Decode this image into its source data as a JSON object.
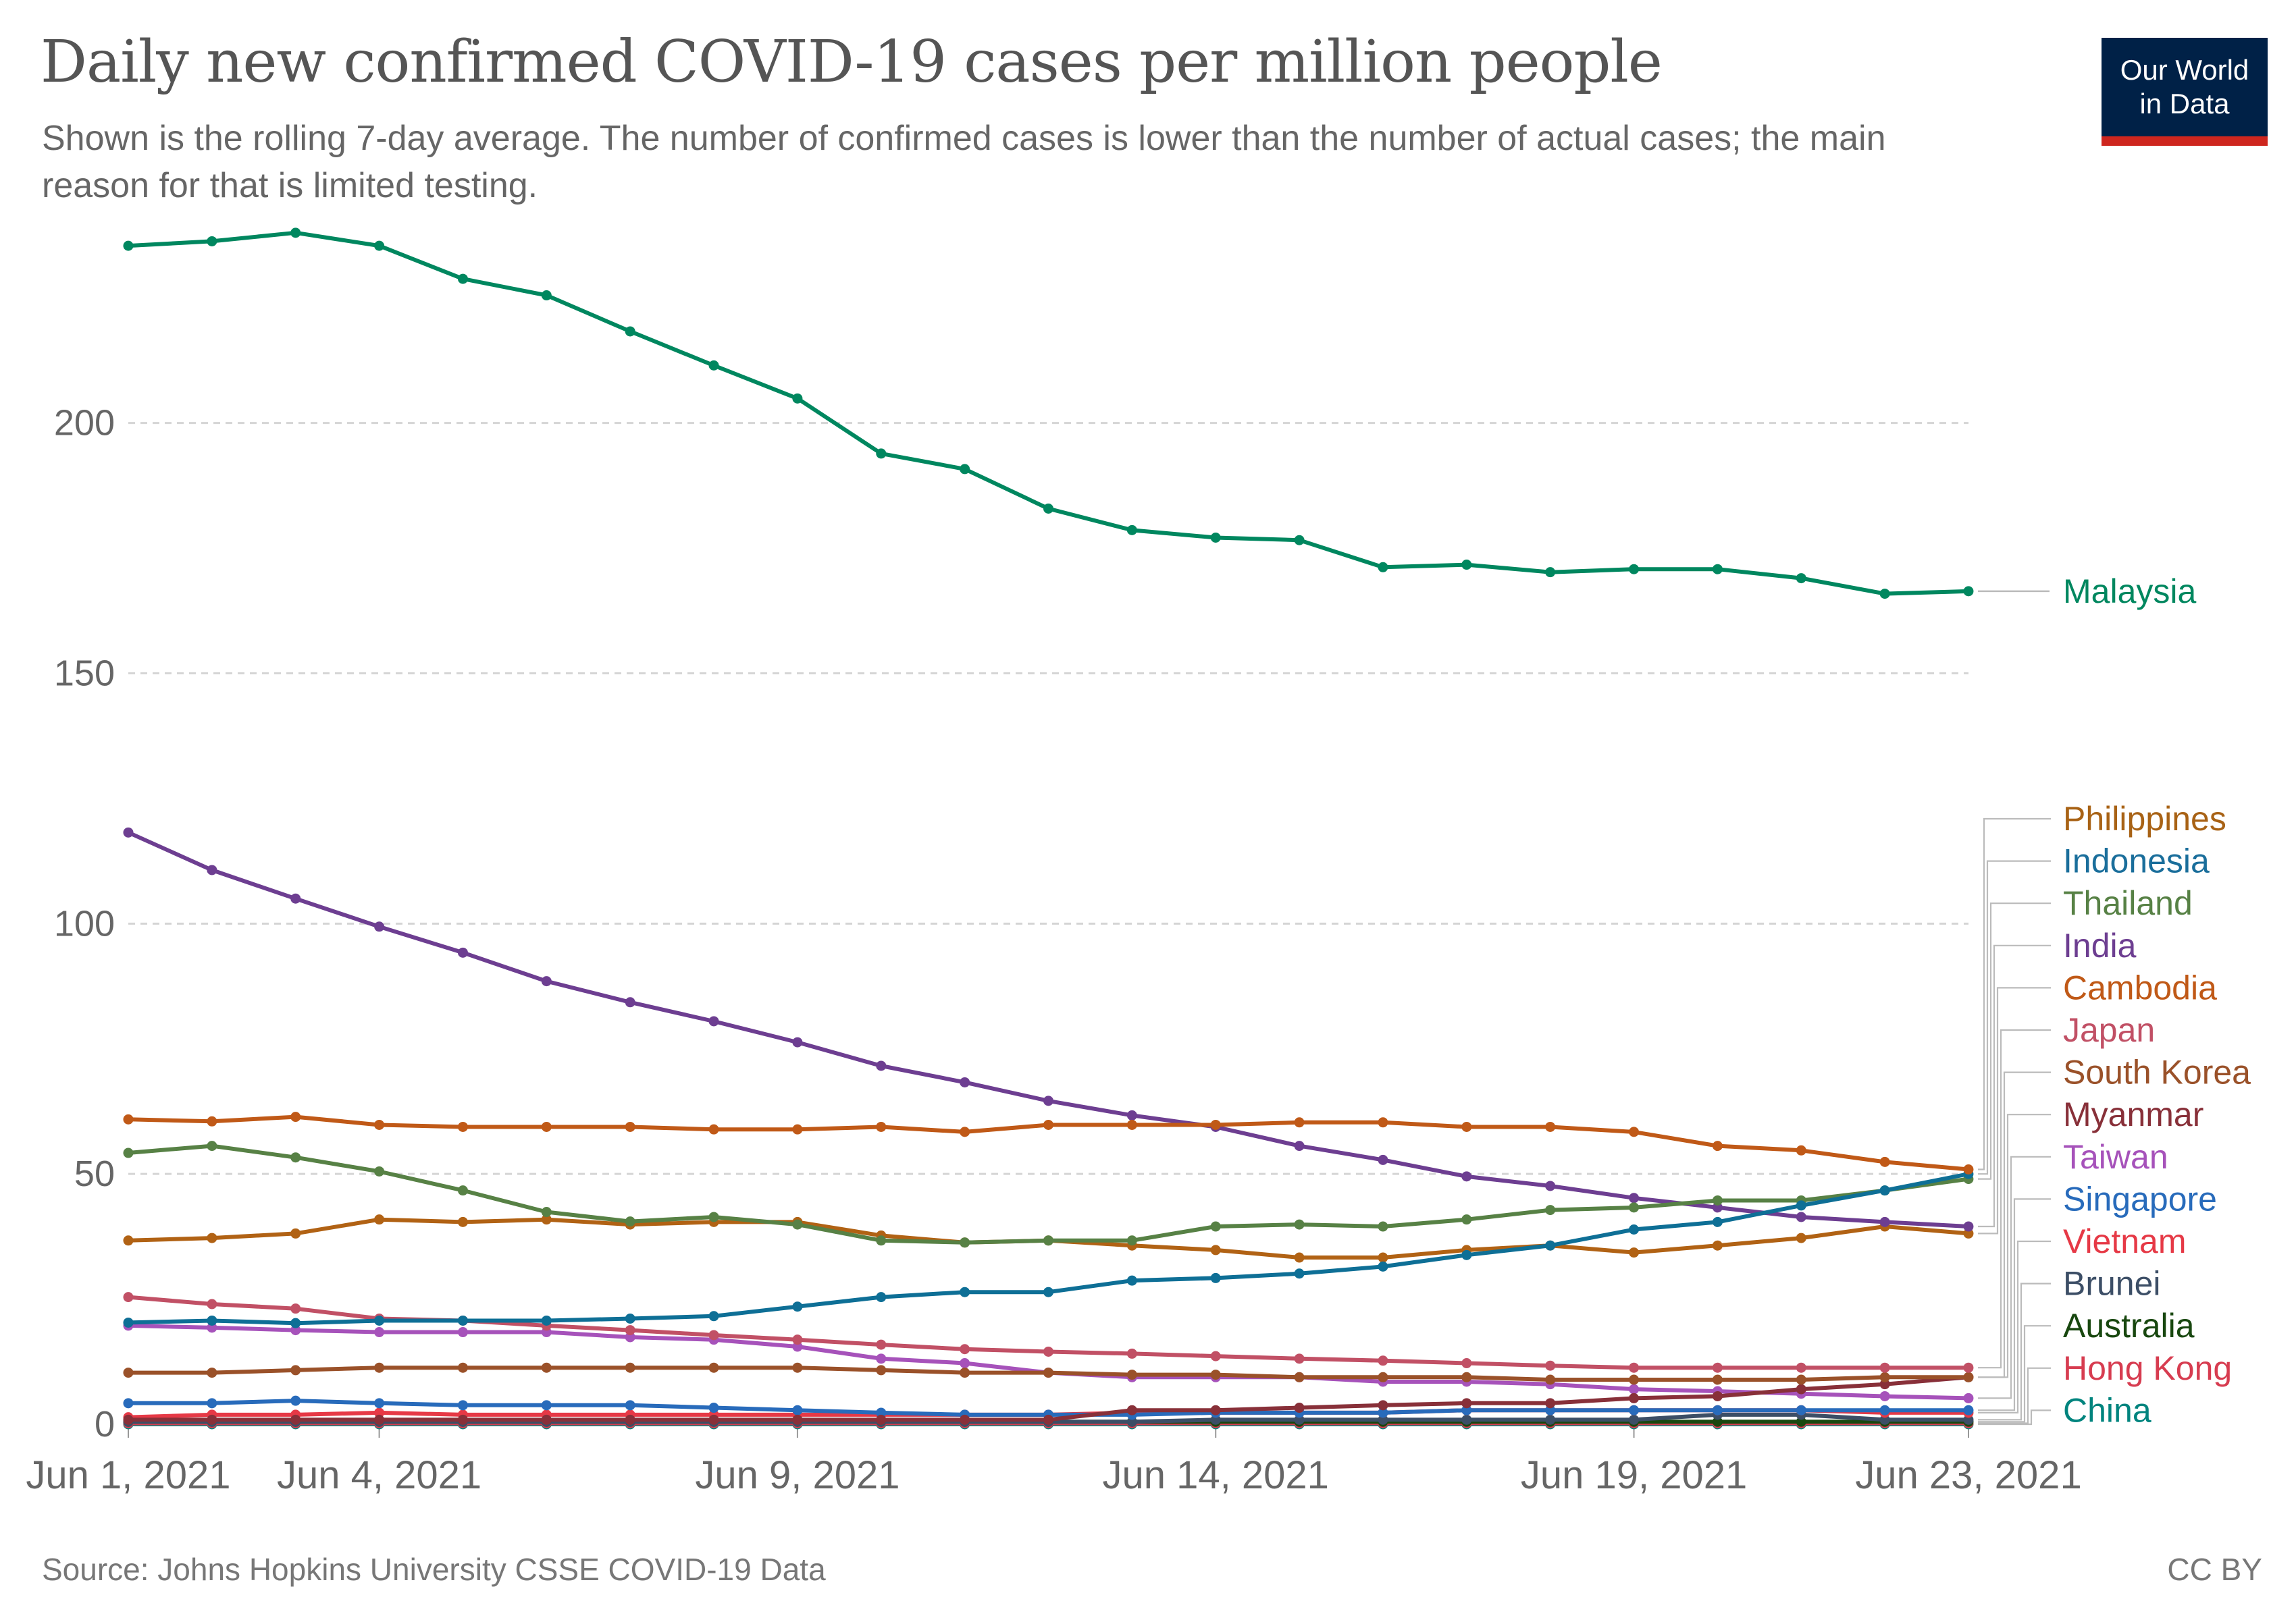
{
  "title": "Daily new confirmed COVID-19 cases per million people",
  "subtitle": "Shown is the rolling 7-day average. The number of confirmed cases is lower than the number of actual cases; the main reason for that is limited testing.",
  "logo": {
    "line1": "Our World",
    "line2": "in Data"
  },
  "source": "Source: Johns Hopkins University CSSE COVID-19 Data",
  "license": "CC BY",
  "chart_data": {
    "type": "line",
    "title": "Daily new confirmed COVID-19 cases per million people",
    "subtitle": "Shown is the rolling 7-day average. The number of confirmed cases is lower than the number of actual cases; the main reason for that is limited testing.",
    "xlabel": "",
    "ylabel": "",
    "x": [
      "2021-06-01",
      "2021-06-02",
      "2021-06-03",
      "2021-06-04",
      "2021-06-05",
      "2021-06-06",
      "2021-06-07",
      "2021-06-08",
      "2021-06-09",
      "2021-06-10",
      "2021-06-11",
      "2021-06-12",
      "2021-06-13",
      "2021-06-14",
      "2021-06-15",
      "2021-06-16",
      "2021-06-17",
      "2021-06-18",
      "2021-06-19",
      "2021-06-20",
      "2021-06-21",
      "2021-06-22",
      "2021-06-23"
    ],
    "x_ticks": [
      {
        "x": "2021-06-01",
        "label": "Jun 1, 2021"
      },
      {
        "x": "2021-06-04",
        "label": "Jun 4, 2021"
      },
      {
        "x": "2021-06-09",
        "label": "Jun 9, 2021"
      },
      {
        "x": "2021-06-14",
        "label": "Jun 14, 2021"
      },
      {
        "x": "2021-06-19",
        "label": "Jun 19, 2021"
      },
      {
        "x": "2021-06-23",
        "label": "Jun 23, 2021"
      }
    ],
    "y_ticks": [
      0,
      50,
      100,
      150,
      200
    ],
    "ylim": [
      0,
      240
    ],
    "grid": "horizontal dashed",
    "legend": "right, labels at line ends",
    "series": [
      {
        "name": "Malaysia",
        "color": "#00875f",
        "values": [
          235.4,
          236.3,
          238.0,
          235.4,
          228.8,
          225.5,
          218.3,
          211.5,
          204.9,
          193.9,
          190.8,
          182.9,
          178.6,
          177.1,
          176.6,
          171.2,
          171.7,
          170.2,
          170.8,
          170.8,
          169.0,
          165.9,
          166.4
        ]
      },
      {
        "name": "Philippines",
        "color": "#c05917",
        "values": [
          60.9,
          60.5,
          61.4,
          59.8,
          59.4,
          59.4,
          59.4,
          58.9,
          58.9,
          59.4,
          58.4,
          59.8,
          59.8,
          59.8,
          60.3,
          60.3,
          59.4,
          59.4,
          58.4,
          55.6,
          54.7,
          52.4,
          50.9
        ]
      },
      {
        "name": "Indonesia",
        "color": "#0e6f96",
        "values": [
          20.3,
          20.7,
          20.2,
          20.7,
          20.7,
          20.7,
          21.1,
          21.6,
          23.5,
          25.4,
          26.4,
          26.4,
          28.7,
          29.2,
          30.1,
          31.5,
          33.8,
          35.7,
          38.9,
          40.4,
          43.7,
          46.7,
          50.0
        ]
      },
      {
        "name": "Thailand",
        "color": "#578145",
        "values": [
          54.2,
          55.6,
          53.3,
          50.5,
          46.7,
          42.4,
          40.5,
          41.4,
          39.9,
          36.7,
          36.3,
          36.7,
          36.7,
          39.5,
          39.9,
          39.5,
          40.9,
          42.8,
          43.3,
          44.7,
          44.7,
          46.7,
          49.0
        ]
      },
      {
        "name": "India",
        "color": "#6d3e91",
        "values": [
          118.2,
          110.7,
          105.0,
          99.4,
          94.2,
          88.5,
          84.3,
          80.5,
          76.3,
          71.6,
          68.3,
          64.6,
          61.7,
          59.4,
          55.6,
          52.8,
          49.5,
          47.6,
          45.2,
          43.3,
          41.4,
          40.4,
          39.5
        ]
      },
      {
        "name": "Cambodia",
        "color": "#b16214",
        "values": [
          36.7,
          37.2,
          38.1,
          40.9,
          40.4,
          40.9,
          39.9,
          40.4,
          40.4,
          37.7,
          36.3,
          36.7,
          35.7,
          34.8,
          33.3,
          33.3,
          34.8,
          35.7,
          34.3,
          35.7,
          37.2,
          39.5,
          38.1
        ]
      },
      {
        "name": "Japan",
        "color": "#c15065",
        "values": [
          25.4,
          24.0,
          23.1,
          21.1,
          20.7,
          19.7,
          18.8,
          17.8,
          16.9,
          15.9,
          15.0,
          14.5,
          14.1,
          13.6,
          13.1,
          12.7,
          12.2,
          11.7,
          11.3,
          11.3,
          11.3,
          11.3,
          11.3
        ]
      },
      {
        "name": "South Korea",
        "color": "#9a5129",
        "values": [
          10.3,
          10.3,
          10.8,
          11.3,
          11.3,
          11.3,
          11.3,
          11.3,
          11.3,
          10.8,
          10.3,
          10.3,
          9.9,
          9.9,
          9.4,
          9.4,
          9.4,
          8.9,
          8.9,
          8.9,
          8.9,
          9.4,
          9.4
        ]
      },
      {
        "name": "Myanmar",
        "color": "#883039",
        "values": [
          0.9,
          0.9,
          0.9,
          0.9,
          0.9,
          0.9,
          0.9,
          0.9,
          0.9,
          0.9,
          0.9,
          0.9,
          2.8,
          2.8,
          3.3,
          3.8,
          4.2,
          4.2,
          5.2,
          5.6,
          7.0,
          8.0,
          9.4
        ]
      },
      {
        "name": "Taiwan",
        "color": "#a652ba",
        "values": [
          19.7,
          19.3,
          18.8,
          18.4,
          18.4,
          18.4,
          17.4,
          16.9,
          15.5,
          13.1,
          12.2,
          10.3,
          9.4,
          9.4,
          9.4,
          8.5,
          8.5,
          8.0,
          7.0,
          6.6,
          6.1,
          5.6,
          5.2
        ]
      },
      {
        "name": "Singapore",
        "color": "#286bbb",
        "values": [
          4.2,
          4.2,
          4.7,
          4.2,
          3.8,
          3.8,
          3.8,
          3.3,
          2.8,
          2.3,
          1.9,
          1.9,
          1.9,
          2.3,
          2.3,
          2.3,
          2.8,
          2.8,
          2.8,
          2.8,
          2.8,
          2.8,
          2.8
        ]
      },
      {
        "name": "Vietnam",
        "color": "#e63946",
        "values": [
          1.4,
          1.9,
          1.9,
          2.3,
          1.9,
          1.9,
          1.9,
          1.9,
          1.9,
          1.9,
          1.9,
          1.9,
          2.3,
          2.3,
          2.3,
          2.3,
          2.8,
          2.8,
          2.8,
          2.8,
          2.8,
          2.3,
          2.3
        ]
      },
      {
        "name": "Brunei",
        "color": "#3c4e66",
        "values": [
          0.5,
          0.5,
          0.5,
          0.5,
          0.5,
          0.5,
          0.5,
          0.5,
          0.5,
          0.5,
          0.5,
          0.5,
          0.5,
          0.9,
          0.9,
          0.9,
          0.9,
          0.9,
          0.9,
          1.9,
          1.9,
          0.9,
          0.9
        ]
      },
      {
        "name": "Australia",
        "color": "#18470f",
        "values": [
          0.5,
          0.5,
          0.5,
          0.5,
          0.5,
          0.5,
          0.5,
          0.5,
          0.5,
          0.5,
          0.5,
          0.5,
          0.5,
          0.5,
          0.5,
          0.5,
          0.5,
          0.5,
          0.5,
          0.5,
          0.5,
          0.5,
          0.5
        ]
      },
      {
        "name": "Hong Kong",
        "color": "#d73c50",
        "values": [
          0.2,
          0.2,
          0.2,
          0.2,
          0.2,
          0.2,
          0.2,
          0.2,
          0.2,
          0.2,
          0.2,
          0.2,
          0.2,
          0.2,
          0.2,
          0.2,
          0.2,
          0.2,
          0.2,
          0.2,
          0.2,
          0.2,
          0.2
        ]
      },
      {
        "name": "China",
        "color": "#00847e",
        "values": [
          0.0,
          0.0,
          0.0,
          0.0,
          0.0,
          0.0,
          0.0,
          0.0,
          0.0,
          0.0,
          0.0,
          0.0,
          0.0,
          0.0,
          0.0,
          0.0,
          0.0,
          0.0,
          0.0,
          0.0,
          0.0,
          0.0,
          0.0
        ]
      }
    ],
    "label_colors": {
      "Malaysia": "#00875f",
      "Philippines": "#a86215",
      "Indonesia": "#1a6e9b",
      "Thailand": "#578145",
      "India": "#6d3e91",
      "Cambodia": "#c05917",
      "Japan": "#c15065",
      "South Korea": "#9a5129",
      "Myanmar": "#883039",
      "Taiwan": "#a652ba",
      "Singapore": "#286bbb",
      "Vietnam": "#e63946",
      "Brunei": "#3c4e66",
      "Australia": "#18470f",
      "Hong Kong": "#d73c50",
      "China": "#00847e"
    }
  }
}
